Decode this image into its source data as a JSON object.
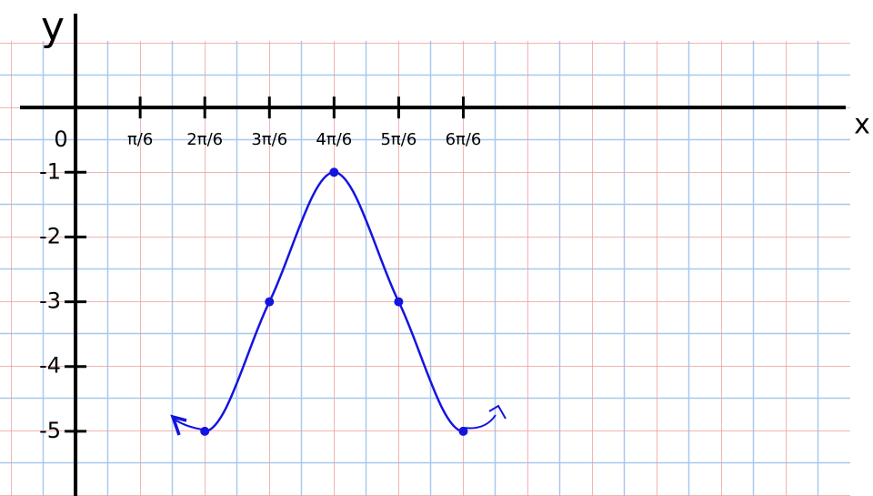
{
  "chart_data": {
    "type": "line",
    "x_label": "x",
    "y_label": "y",
    "x": [
      1.0472,
      1.5708,
      2.0944,
      2.618,
      3.1416
    ],
    "series": [
      {
        "color": "#1414e0",
        "values": [
          -5,
          -3,
          -1,
          -3,
          -5
        ]
      }
    ],
    "xlim": [
      -0.45,
      6.24
    ],
    "ylim": [
      -6,
      1.45
    ],
    "xticks": [
      0,
      {
        "value": 0.5236,
        "label": "π/6"
      },
      {
        "value": 1.0472,
        "label": "2π/6"
      },
      {
        "value": 1.5708,
        "label": "3π/6"
      },
      {
        "value": 2.0944,
        "label": "4π/6"
      },
      {
        "value": 2.618,
        "label": "5π/6"
      },
      {
        "value": 3.1416,
        "label": "6π/6"
      }
    ],
    "yticks": [
      -1,
      -2,
      -3,
      -4,
      -5
    ]
  }
}
